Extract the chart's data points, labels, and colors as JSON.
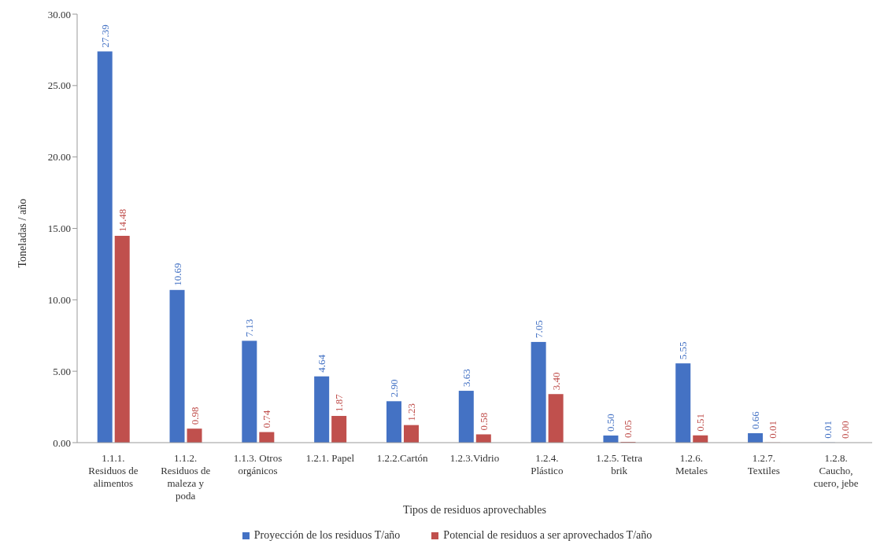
{
  "chart_data": {
    "type": "bar",
    "xlabel": "Tipos de residuos aprovechables",
    "ylabel": "Toneladas / año",
    "categories": [
      "1.1.1. Residuos de alimentos",
      "1.1.2. Residuos de maleza  y poda",
      "1.1.3. Otros orgánicos",
      "1.2.1. Papel",
      "1.2.2.Cartón",
      "1.2.3.Vidrio",
      "1.2.4. Plástico",
      "1.2.5. Tetra brik",
      "1.2.6. Metales",
      "1.2.7. Textiles",
      "1.2.8. Caucho, cuero, jebe"
    ],
    "series": [
      {
        "name": "Proyección de los residuos  T/año",
        "color": "#4472c4",
        "values": [
          27.39,
          10.69,
          7.13,
          4.64,
          2.9,
          3.63,
          7.05,
          0.5,
          5.55,
          0.66,
          0.01
        ],
        "value_labels": [
          "27.39",
          "10.69",
          "7.13",
          "4.64",
          "2.90",
          "3.63",
          "7.05",
          "0.50",
          "5.55",
          "0.66",
          "0.01"
        ]
      },
      {
        "name": "Potencial de residuos a ser aprovechados T/año",
        "color": "#c0504d",
        "values": [
          14.48,
          0.98,
          0.74,
          1.87,
          1.23,
          0.58,
          3.4,
          0.05,
          0.51,
          0.01,
          0.0
        ],
        "value_labels": [
          "14.48",
          "0.98",
          "0.74",
          "1.87",
          "1.23",
          "0.58",
          "3.40",
          "0.05",
          "0.51",
          "0.01",
          "0.00"
        ]
      }
    ],
    "ylim": [
      0,
      30
    ],
    "yticks": [
      {
        "value": 0,
        "label": "0.00"
      },
      {
        "value": 5,
        "label": "5.00"
      },
      {
        "value": 10,
        "label": "10.00"
      },
      {
        "value": 15,
        "label": "15.00"
      },
      {
        "value": 20,
        "label": "20.00"
      },
      {
        "value": 25,
        "label": "25.00"
      },
      {
        "value": 30,
        "label": "30.00"
      }
    ],
    "legend": "bottom"
  }
}
